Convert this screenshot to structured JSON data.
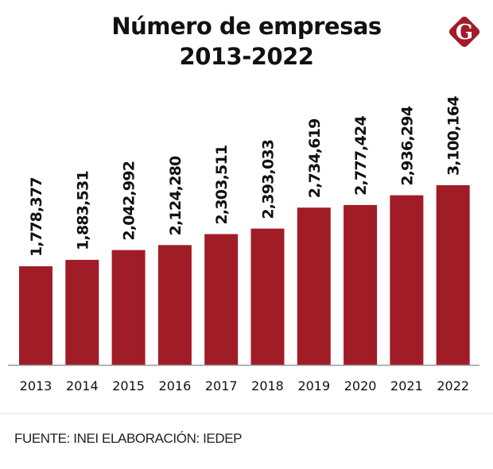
{
  "header": {
    "title_line1": "Número de empresas",
    "title_line2": "2013-2022",
    "logo_letter": "G",
    "logo_color": "#a01c27"
  },
  "chart_data": {
    "type": "bar",
    "title": "Número de empresas 2013-2022",
    "xlabel": "",
    "ylabel": "",
    "categories": [
      "2013",
      "2014",
      "2015",
      "2016",
      "2017",
      "2018",
      "2019",
      "2020",
      "2021",
      "2022"
    ],
    "values": [
      1778377,
      1883531,
      2042992,
      2124280,
      2303511,
      2393033,
      2734619,
      2777424,
      2936294,
      3100164
    ],
    "value_labels": [
      "1,778,377",
      "1,883,531",
      "2,042,992",
      "2,124,280",
      "2,303,511",
      "2,393,033",
      "2,734,619",
      "2,777,424",
      "2,936,294",
      "3,100,164"
    ],
    "bar_color": "#a01c27",
    "grid": false,
    "legend": "none",
    "y_axis_visible": false
  },
  "footer": {
    "source": "FUENTE: INEI ELABORACIÓN: IEDEP"
  }
}
